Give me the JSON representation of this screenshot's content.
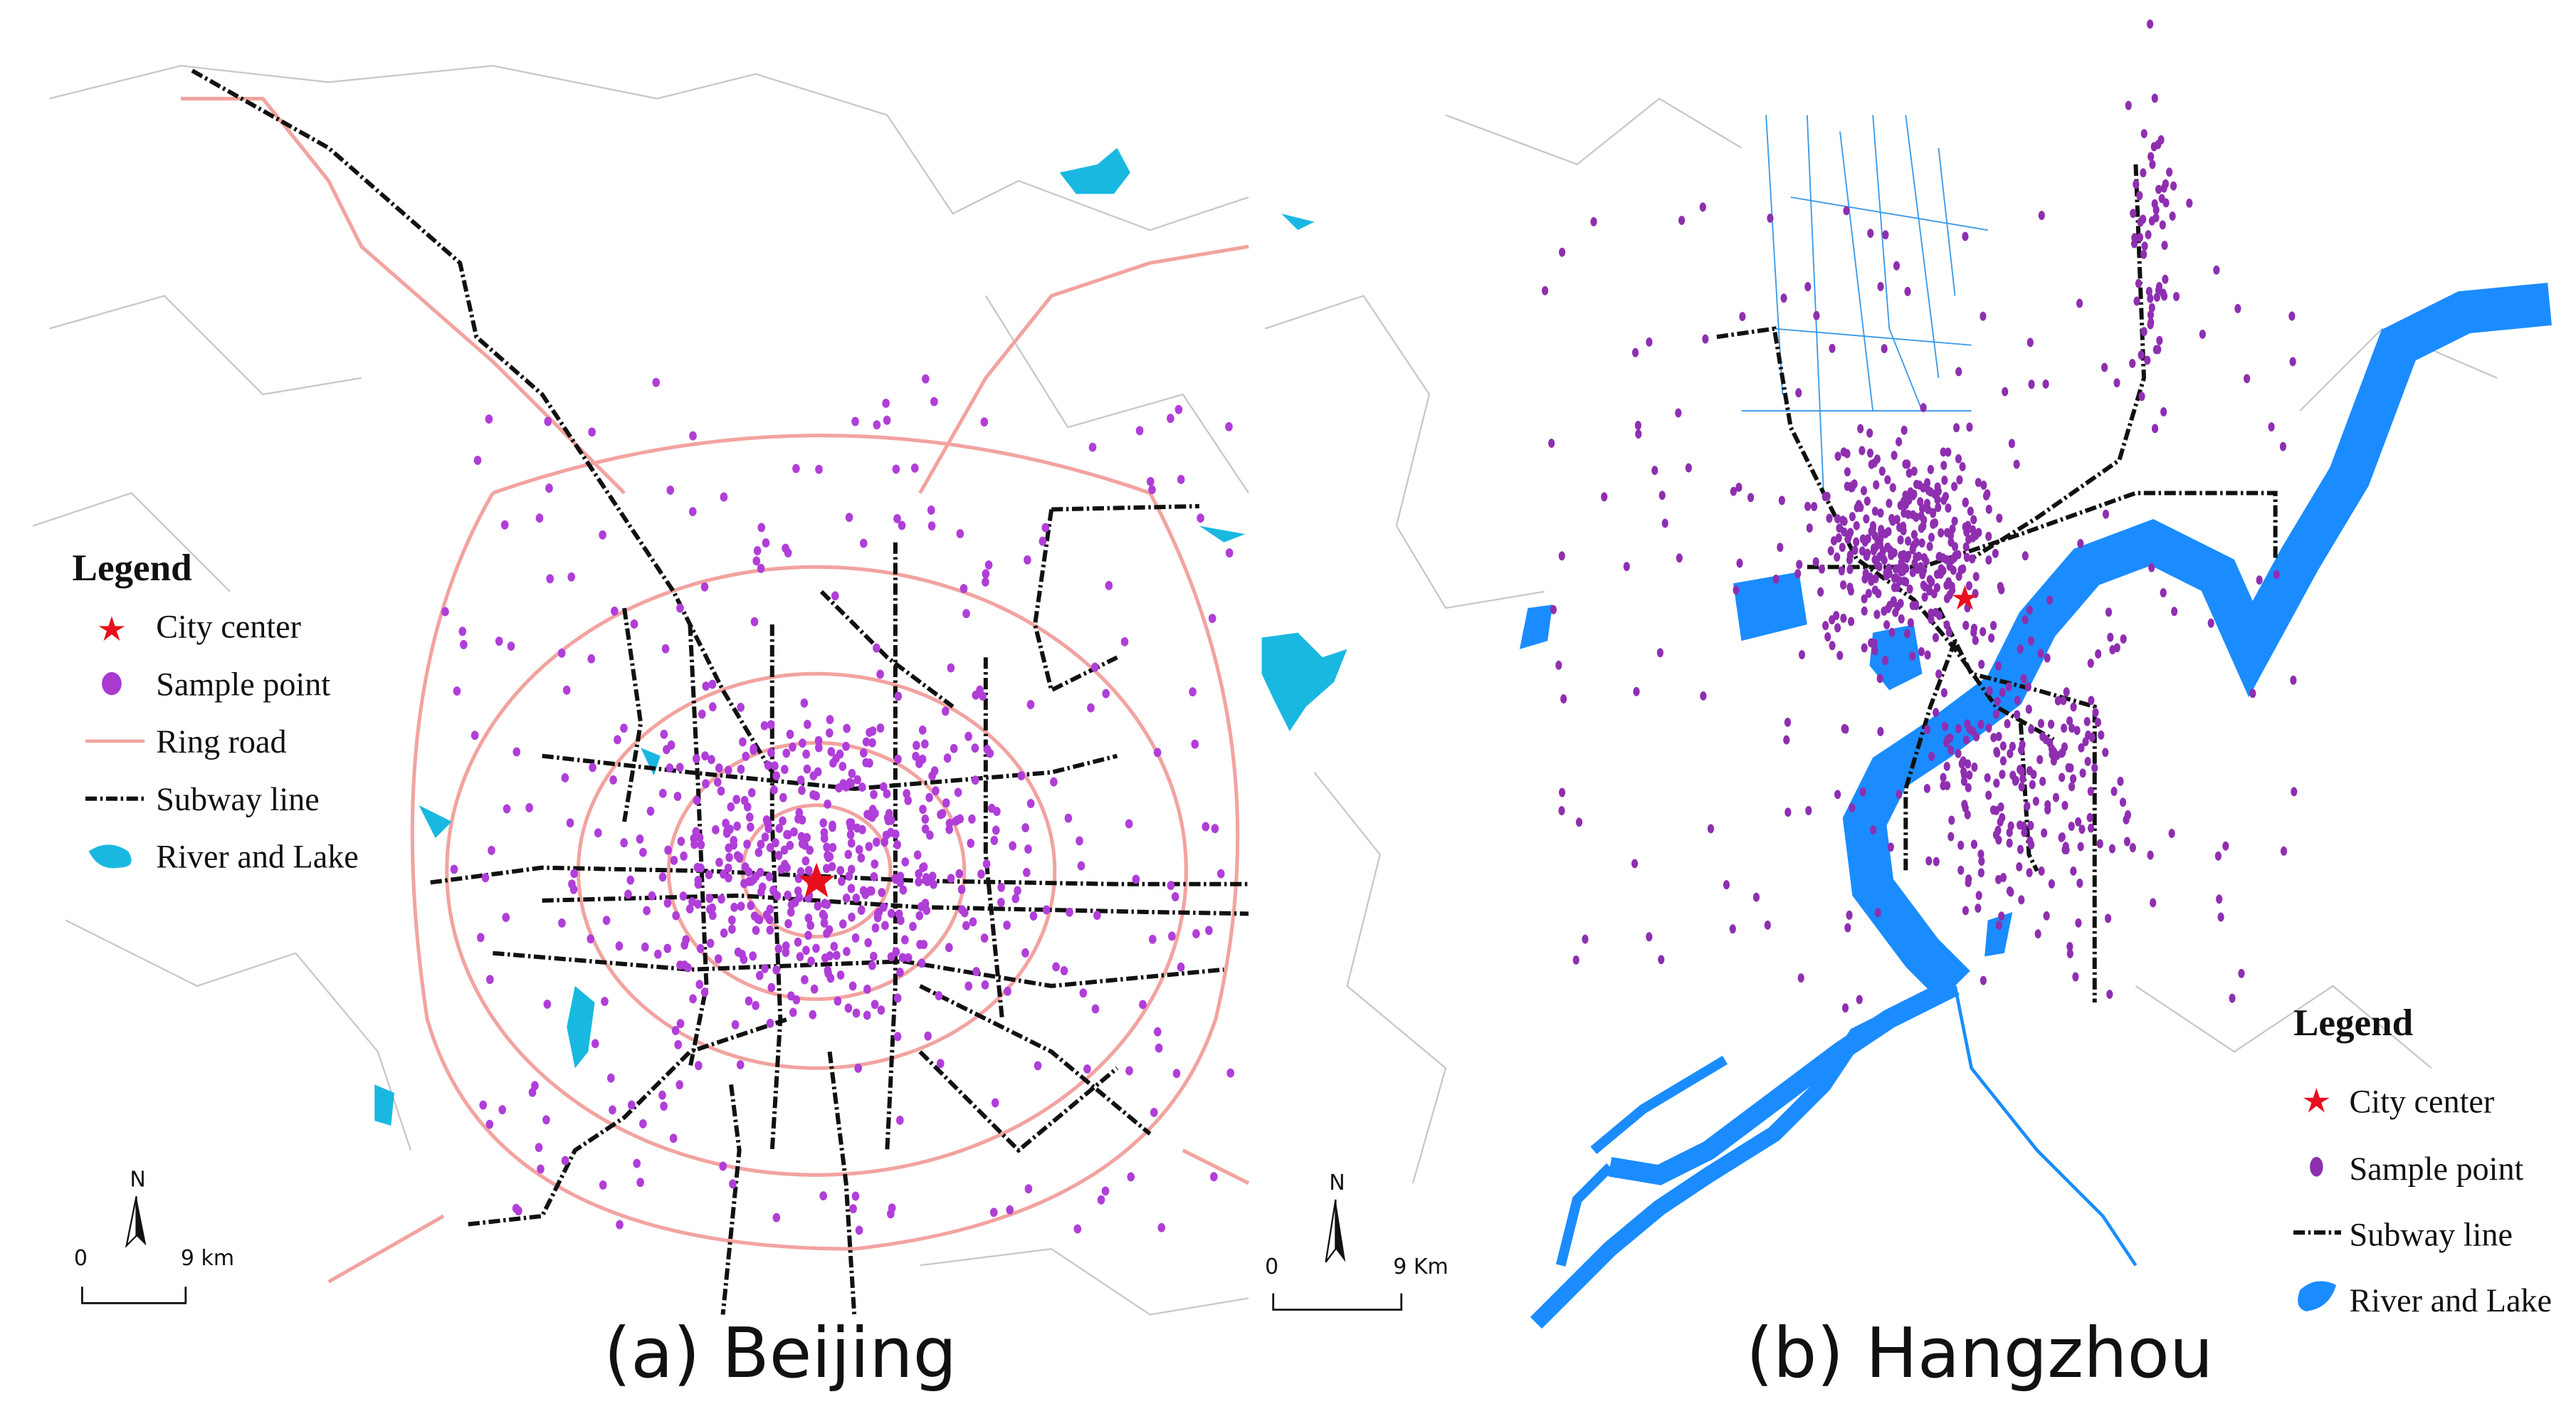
{
  "panels": [
    {
      "caption": "(a) Beijing",
      "legend": {
        "title": "Legend",
        "items": [
          "City center",
          "Sample point",
          "Ring road",
          "Subway line",
          "River and Lake"
        ]
      },
      "north": "N",
      "scale": {
        "start": "0",
        "end": "9 km"
      }
    },
    {
      "caption": "(b) Hangzhou",
      "legend": {
        "title": "Legend",
        "items": [
          "City center",
          "Sample point",
          "Subway line",
          "River and Lake"
        ]
      },
      "north": "N",
      "scale": {
        "start": "0",
        "end": "9 Km"
      }
    }
  ]
}
